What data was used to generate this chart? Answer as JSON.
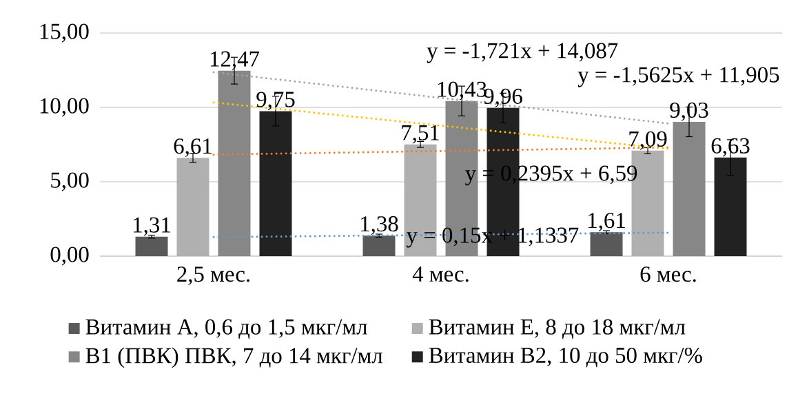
{
  "chart_data": {
    "type": "bar",
    "categories": [
      "2,5 мес.",
      "4 мес.",
      "6 мес."
    ],
    "series": [
      {
        "name": "Витамин А, 0,6 до 1,5 мкг/мл",
        "color": "#595959",
        "values": [
          1.31,
          1.38,
          1.61
        ],
        "value_labels": [
          "1,31",
          "1,38",
          "1,61"
        ],
        "errors": [
          0.1,
          0.1,
          0.1
        ]
      },
      {
        "name": "Витамин Е, 8 до 18 мкг/мл",
        "color": "#b0b0b0",
        "values": [
          6.61,
          7.51,
          7.09
        ],
        "value_labels": [
          "6,61",
          "7,51",
          "7,09"
        ],
        "errors": [
          0.3,
          0.2,
          0.2
        ]
      },
      {
        "name": "В1 (ПВК) ПВК, 7 до 14 мкг/мл",
        "color": "#878787",
        "values": [
          12.47,
          10.43,
          9.03
        ],
        "value_labels": [
          "12,47",
          "10,43",
          "9,03"
        ],
        "errors": [
          0.9,
          1.0,
          1.0
        ]
      },
      {
        "name": "Витамин В2, 10 до 50 мкг/%",
        "color": "#222222",
        "values": [
          9.75,
          9.96,
          6.63
        ],
        "value_labels": [
          "9,75",
          "9,96",
          "6,63"
        ],
        "errors": [
          1.0,
          1.0,
          1.2
        ]
      },
      {
        "type": "line",
        "color": "#5b9bd5",
        "line_style": "dotted",
        "values": [
          1.28,
          1.43,
          1.58
        ]
      },
      {
        "type": "line",
        "color": "#ed7d31",
        "line_style": "dotted",
        "values": [
          6.83,
          7.07,
          7.31
        ]
      },
      {
        "type": "line",
        "color": "#a5a5a5",
        "line_style": "dotted",
        "values": [
          12.37,
          10.64,
          8.92
        ]
      },
      {
        "type": "line",
        "color": "#ffc000",
        "line_style": "dotted",
        "values": [
          10.34,
          8.78,
          7.22
        ]
      }
    ],
    "annotations": [
      "y = 0,15x + 1,1337",
      "y = 0,2395x + 6,59",
      "y = -1,721x + 14,087",
      "y = -1,5625x + 11,905"
    ],
    "ylim": [
      0,
      15
    ],
    "yticks": [
      {
        "value": 0,
        "label": "0,00"
      },
      {
        "value": 5,
        "label": "5,00"
      },
      {
        "value": 10,
        "label": "10,00"
      },
      {
        "value": 15,
        "label": "15,00"
      }
    ],
    "grid": "y",
    "legend": "bottom"
  }
}
